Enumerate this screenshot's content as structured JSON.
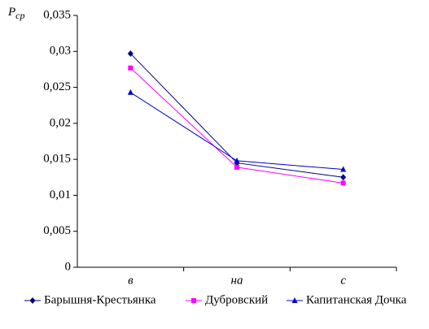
{
  "chart_data": {
    "type": "line",
    "y_label": {
      "symbol": "P",
      "subscript": "ср"
    },
    "categories": [
      "в",
      "на",
      "с"
    ],
    "series": [
      {
        "name": "Барышня-Крестьянка",
        "color": "#000080",
        "marker": "diamond",
        "values": [
          0.0297,
          0.0145,
          0.0125
        ]
      },
      {
        "name": "Дубровский",
        "color": "#ff00ff",
        "marker": "square",
        "values": [
          0.0277,
          0.0139,
          0.0117
        ]
      },
      {
        "name": "Капитанская Дочка",
        "color": "#0000cc",
        "marker": "triangle",
        "values": [
          0.0243,
          0.0148,
          0.0136
        ]
      }
    ],
    "ylim": [
      0,
      0.035
    ],
    "yticks": [
      0,
      {
        "value": 0.005,
        "label": "0,005"
      },
      {
        "value": 0.01,
        "label": "0,01"
      },
      {
        "value": 0.015,
        "label": "0,015"
      },
      {
        "value": 0.02,
        "label": "0,02"
      },
      {
        "value": 0.025,
        "label": "0,025"
      },
      {
        "value": 0.03,
        "label": "0,03"
      },
      {
        "value": 0.035,
        "label": "0,035"
      }
    ],
    "legend": "bottom"
  }
}
